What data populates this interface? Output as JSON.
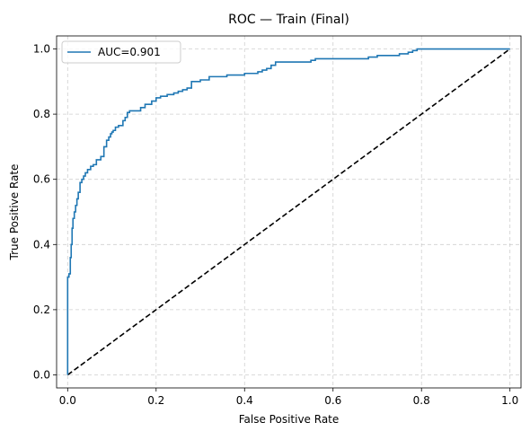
{
  "chart_data": {
    "type": "line",
    "title": "ROC — Train (Final)",
    "xlabel": "False Positive Rate",
    "ylabel": "True Positive Rate",
    "xlim": [
      -0.025,
      1.025
    ],
    "ylim": [
      -0.04,
      1.04
    ],
    "x_ticks": [
      "0.0",
      "0.2",
      "0.4",
      "0.6",
      "0.8",
      "1.0"
    ],
    "y_ticks": [
      "0.0",
      "0.2",
      "0.4",
      "0.6",
      "0.8",
      "1.0"
    ],
    "grid": true,
    "legend_position": "top-left",
    "series": [
      {
        "name": "AUC=0.901",
        "color": "#1f77b4",
        "style": "solid",
        "x": [
          0.0,
          0.0,
          0.003,
          0.003,
          0.006,
          0.006,
          0.008,
          0.008,
          0.01,
          0.01,
          0.012,
          0.012,
          0.015,
          0.015,
          0.018,
          0.018,
          0.021,
          0.021,
          0.024,
          0.024,
          0.028,
          0.028,
          0.032,
          0.032,
          0.036,
          0.036,
          0.04,
          0.04,
          0.045,
          0.045,
          0.052,
          0.052,
          0.058,
          0.058,
          0.065,
          0.065,
          0.075,
          0.075,
          0.082,
          0.082,
          0.088,
          0.088,
          0.093,
          0.093,
          0.097,
          0.097,
          0.1,
          0.1,
          0.103,
          0.103,
          0.108,
          0.108,
          0.115,
          0.115,
          0.125,
          0.125,
          0.13,
          0.13,
          0.135,
          0.135,
          0.14,
          0.14,
          0.165,
          0.165,
          0.175,
          0.175,
          0.19,
          0.19,
          0.2,
          0.2,
          0.21,
          0.21,
          0.225,
          0.225,
          0.24,
          0.24,
          0.25,
          0.25,
          0.26,
          0.26,
          0.27,
          0.27,
          0.28,
          0.28,
          0.3,
          0.3,
          0.32,
          0.32,
          0.36,
          0.36,
          0.4,
          0.4,
          0.43,
          0.43,
          0.44,
          0.44,
          0.45,
          0.45,
          0.46,
          0.46,
          0.47,
          0.47,
          0.55,
          0.55,
          0.56,
          0.56,
          0.68,
          0.68,
          0.7,
          0.7,
          0.75,
          0.75,
          0.77,
          0.77,
          0.78,
          0.78,
          0.79,
          0.79,
          1.0
        ],
        "y": [
          0.0,
          0.3,
          0.3,
          0.31,
          0.31,
          0.36,
          0.36,
          0.4,
          0.4,
          0.45,
          0.45,
          0.48,
          0.48,
          0.5,
          0.5,
          0.52,
          0.52,
          0.54,
          0.54,
          0.56,
          0.56,
          0.59,
          0.59,
          0.6,
          0.6,
          0.61,
          0.61,
          0.62,
          0.62,
          0.63,
          0.63,
          0.64,
          0.64,
          0.645,
          0.645,
          0.66,
          0.66,
          0.67,
          0.67,
          0.7,
          0.7,
          0.72,
          0.72,
          0.73,
          0.73,
          0.74,
          0.74,
          0.745,
          0.745,
          0.75,
          0.75,
          0.76,
          0.76,
          0.765,
          0.765,
          0.78,
          0.78,
          0.79,
          0.79,
          0.805,
          0.805,
          0.81,
          0.81,
          0.82,
          0.82,
          0.83,
          0.83,
          0.84,
          0.84,
          0.85,
          0.85,
          0.855,
          0.855,
          0.86,
          0.86,
          0.865,
          0.865,
          0.87,
          0.87,
          0.875,
          0.875,
          0.88,
          0.88,
          0.9,
          0.9,
          0.905,
          0.905,
          0.915,
          0.915,
          0.92,
          0.92,
          0.925,
          0.925,
          0.93,
          0.93,
          0.935,
          0.935,
          0.94,
          0.94,
          0.95,
          0.95,
          0.96,
          0.96,
          0.965,
          0.965,
          0.97,
          0.97,
          0.975,
          0.975,
          0.98,
          0.98,
          0.985,
          0.985,
          0.99,
          0.99,
          0.995,
          0.995,
          1.0,
          1.0
        ]
      },
      {
        "name": "",
        "color": "#000000",
        "style": "dashed",
        "x": [
          0,
          1
        ],
        "y": [
          0,
          1
        ]
      }
    ]
  }
}
